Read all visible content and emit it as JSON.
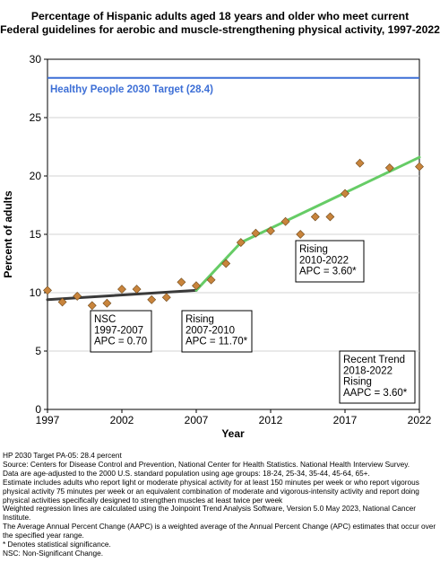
{
  "title_line1": "Percentage of Hispanic adults aged 18 years and older who meet current",
  "title_line2": "Federal guidelines for aerobic and muscle-strengthening physical activity, 1997-2022",
  "chart_data": {
    "type": "scatter",
    "title": "Percentage of Hispanic adults aged 18 years and older who meet current Federal guidelines for aerobic and muscle-strengthening physical activity, 1997-2022",
    "xlabel": "Year",
    "ylabel": "Percent of adults",
    "xlim": [
      1997,
      2022
    ],
    "ylim": [
      0,
      30
    ],
    "xticks": [
      1997,
      2002,
      2007,
      2012,
      2017,
      2022
    ],
    "yticks": [
      0,
      5,
      10,
      15,
      20,
      25,
      30
    ],
    "grid": "horizontal",
    "points": {
      "x": [
        1997,
        1998,
        1999,
        2000,
        2001,
        2002,
        2003,
        2004,
        2005,
        2006,
        2007,
        2008,
        2009,
        2010,
        2011,
        2012,
        2013,
        2014,
        2015,
        2016,
        2017,
        2018,
        2020,
        2022
      ],
      "y": [
        10.2,
        9.2,
        9.7,
        8.9,
        9.1,
        10.3,
        10.3,
        9.4,
        9.6,
        10.9,
        10.6,
        11.1,
        12.5,
        14.3,
        15.1,
        15.3,
        16.1,
        15.0,
        16.5,
        16.5,
        18.5,
        21.1,
        20.7,
        20.8
      ],
      "color": "#c8843c"
    },
    "trend_lines": [
      {
        "x": [
          1997,
          2007
        ],
        "y": [
          9.4,
          10.2
        ],
        "color": "#3a3a3a"
      },
      {
        "x": [
          2007,
          2010
        ],
        "y": [
          10.2,
          14.3
        ],
        "color": "#66cc66"
      },
      {
        "x": [
          2010,
          2022
        ],
        "y": [
          14.3,
          21.6
        ],
        "color": "#66cc66"
      }
    ],
    "reference_line": {
      "y": 28.4,
      "label": "Healthy People 2030 Target (28.4)",
      "color": "#3d6fd6"
    },
    "annotations": [
      {
        "lines": [
          "NSC",
          "1997-2007",
          "APC =  0.70"
        ]
      },
      {
        "lines": [
          "Rising",
          "2007-2010",
          "APC = 11.70*"
        ]
      },
      {
        "lines": [
          "Rising",
          "2010-2022",
          "APC =  3.60*"
        ]
      },
      {
        "lines": [
          "Recent Trend",
          "2018-2022",
          "Rising",
          "AAPC =  3.60*"
        ]
      }
    ]
  },
  "footnotes": [
    "HP 2030 Target PA-05: 28.4 percent",
    "Source: Centers for Disease Control and Prevention, National Center for Health Statistics. National Health Interview Survey.",
    "Data are age-adjusted to the 2000 U.S. standard population using age groups: 18-24, 25-34, 35-44, 45-64, 65+.",
    "Estimate includes adults who report light or moderate physical activity for at least 150 minutes per week or who report vigorous physical activity 75 minutes per week or an equivalent combination of moderate and vigorous-intensity activity and report doing physical activities specifically designed to strengthen muscles at least twice per week",
    "Weighted regression lines are calculated using the Joinpoint Trend Analysis Software, Version 5.0 May 2023, National Cancer Institute.",
    "The Average Annual Percent Change (AAPC) is a weighted average of the Annual Percent Change (APC) estimates that occur over the specified year range.",
    "* Denotes statistical significance.",
    "NSC: Non-Significant Change."
  ]
}
